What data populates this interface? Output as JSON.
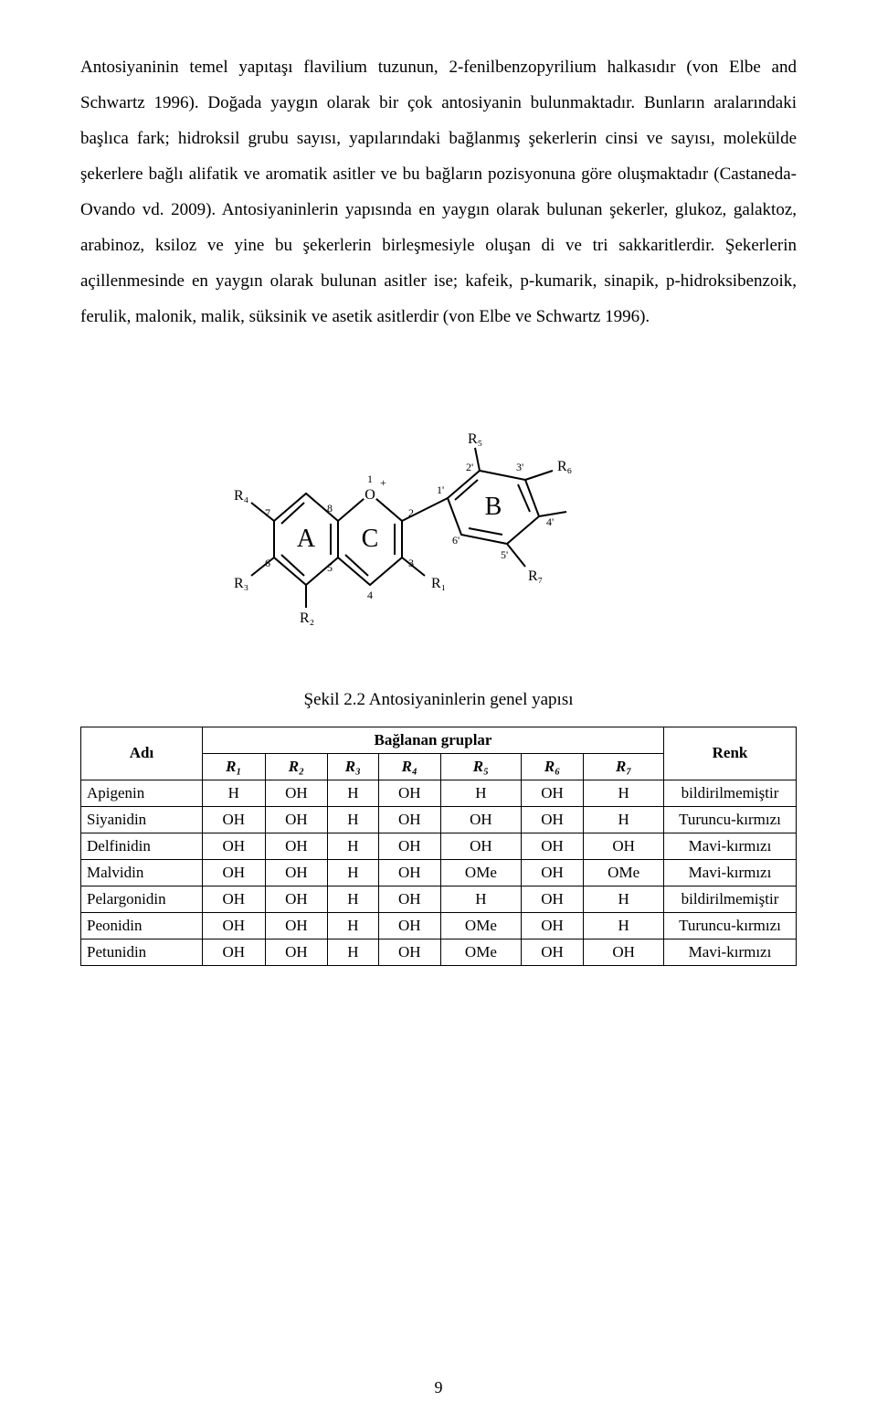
{
  "paragraph": {
    "text": "Antosiyaninin temel yapıtaşı flavilium tuzunun, 2-fenilbenzopyrilium halkasıdır (von Elbe and Schwartz 1996). Doğada yaygın olarak bir çok antosiyanin bulunmaktadır. Bunların aralarındaki başlıca fark; hidroksil grubu sayısı, yapılarındaki bağlanmış şekerlerin cinsi ve sayısı, molekülde şekerlere bağlı alifatik ve aromatik asitler ve bu bağların pozisyonuna göre oluşmaktadır (Castaneda-Ovando vd. 2009). Antosiyaninlerin yapısında en yaygın olarak bulunan şekerler, glukoz, galaktoz, arabinoz, ksiloz ve yine bu şekerlerin birleşmesiyle oluşan di ve tri sakkaritlerdir. Şekerlerin açillenmesinde en yaygın olarak bulunan asitler ise; kafeik, p-kumarik, sinapik, p-hidroksibenzoik, ferulik, malonik, malik, süksinik ve asetik asitlerdir (von Elbe ve Schwartz 1996)."
  },
  "figure": {
    "caption": "Şekil 2.2 Antosiyaninlerin genel yapısı",
    "ring_labels": {
      "A": "A",
      "B": "B",
      "C": "C"
    },
    "r_labels": {
      "R1": "R₁",
      "R2": "R₂",
      "R3": "R₃",
      "R4": "R₄",
      "R5": "R₅",
      "R6": "R₆",
      "R7": "R₇"
    },
    "pos_labels": [
      "1",
      "2",
      "3",
      "4",
      "5",
      "6",
      "7",
      "8",
      "1'",
      "2'",
      "3'",
      "4'",
      "5'",
      "6'"
    ],
    "o_plus": "O",
    "stroke": "#000000",
    "stroke_width": 2,
    "bg": "#ffffff",
    "font_family": "Times New Roman",
    "ring_font_size": 30,
    "r_font_size": 18,
    "num_font_size": 13
  },
  "table": {
    "headers": {
      "name": "Adı",
      "group": "Bağlanan gruplar",
      "color": "Renk",
      "sub": [
        "R₁",
        "R₂",
        "R₃",
        "R₄",
        "R₅",
        "R₆",
        "R₇"
      ]
    },
    "rows": [
      {
        "name": "Apigenin",
        "cells": [
          "H",
          "OH",
          "H",
          "OH",
          "H",
          "OH",
          "H"
        ],
        "color": "bildirilmemiştir"
      },
      {
        "name": "Siyanidin",
        "cells": [
          "OH",
          "OH",
          "H",
          "OH",
          "OH",
          "OH",
          "H"
        ],
        "color": "Turuncu-kırmızı"
      },
      {
        "name": "Delfinidin",
        "cells": [
          "OH",
          "OH",
          "H",
          "OH",
          "OH",
          "OH",
          "OH"
        ],
        "color": "Mavi-kırmızı"
      },
      {
        "name": "Malvidin",
        "cells": [
          "OH",
          "OH",
          "H",
          "OH",
          "OMe",
          "OH",
          "OMe"
        ],
        "color": "Mavi-kırmızı"
      },
      {
        "name": "Pelargonidin",
        "cells": [
          "OH",
          "OH",
          "H",
          "OH",
          "H",
          "OH",
          "H"
        ],
        "color": "bildirilmemiştir"
      },
      {
        "name": "Peonidin",
        "cells": [
          "OH",
          "OH",
          "H",
          "OH",
          "OMe",
          "OH",
          "H"
        ],
        "color": "Turuncu-kırmızı"
      },
      {
        "name": "Petunidin",
        "cells": [
          "OH",
          "OH",
          "H",
          "OH",
          "OMe",
          "OH",
          "OH"
        ],
        "color": "Mavi-kırmızı"
      }
    ]
  },
  "page_number": "9"
}
